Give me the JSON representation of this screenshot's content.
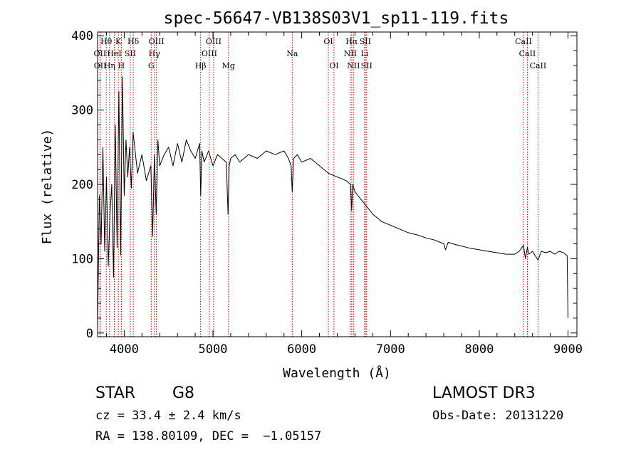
{
  "chart_data": {
    "type": "line",
    "title": "spec-56647-VB138S03V1_sp11-119.fits",
    "xlabel": "Wavelength (Å)",
    "ylabel": "Flux (relative)",
    "xlim": [
      3700,
      9100
    ],
    "ylim": [
      -5,
      405
    ],
    "x_ticks": [
      4000,
      5000,
      6000,
      7000,
      8000,
      9000
    ],
    "y_ticks": [
      0,
      100,
      200,
      300,
      400
    ],
    "series": [
      {
        "name": "spectrum",
        "x": [
          3700,
          3720,
          3740,
          3760,
          3780,
          3800,
          3820,
          3840,
          3860,
          3880,
          3900,
          3920,
          3940,
          3960,
          3980,
          4000,
          4020,
          4040,
          4060,
          4080,
          4100,
          4150,
          4200,
          4250,
          4300,
          4320,
          4340,
          4360,
          4380,
          4400,
          4450,
          4500,
          4550,
          4600,
          4650,
          4700,
          4750,
          4800,
          4850,
          4862,
          4875,
          4900,
          4950,
          5000,
          5050,
          5100,
          5150,
          5170,
          5183,
          5200,
          5250,
          5300,
          5400,
          5500,
          5600,
          5700,
          5800,
          5850,
          5880,
          5893,
          5910,
          5950,
          6000,
          6100,
          6200,
          6300,
          6400,
          6500,
          6550,
          6563,
          6575,
          6600,
          6700,
          6800,
          6900,
          7000,
          7100,
          7200,
          7300,
          7400,
          7500,
          7600,
          7620,
          7650,
          7700,
          7800,
          7900,
          8000,
          8100,
          8200,
          8300,
          8400,
          8450,
          8498,
          8520,
          8542,
          8560,
          8600,
          8662,
          8700,
          8750,
          8800,
          8850,
          8900,
          8950,
          8990,
          9000
        ],
        "values": [
          5,
          185,
          120,
          250,
          110,
          210,
          90,
          160,
          200,
          75,
          280,
          115,
          325,
          105,
          345,
          185,
          260,
          210,
          250,
          195,
          270,
          215,
          240,
          205,
          225,
          130,
          240,
          160,
          260,
          225,
          240,
          250,
          225,
          255,
          230,
          260,
          245,
          235,
          255,
          185,
          245,
          230,
          245,
          225,
          240,
          235,
          230,
          160,
          225,
          235,
          240,
          230,
          240,
          235,
          245,
          240,
          245,
          235,
          225,
          190,
          235,
          240,
          230,
          235,
          225,
          215,
          210,
          205,
          200,
          165,
          200,
          190,
          175,
          160,
          150,
          145,
          140,
          135,
          132,
          128,
          125,
          120,
          112,
          122,
          120,
          117,
          114,
          112,
          110,
          108,
          106,
          106,
          110,
          118,
          100,
          115,
          106,
          110,
          98,
          110,
          108,
          110,
          106,
          110,
          108,
          104,
          20
        ]
      }
    ],
    "line_sets": [
      {
        "row": 1,
        "labels": [
          {
            "text": "Hθ",
            "x": 3798
          },
          {
            "text": "K",
            "x": 3934
          },
          {
            "text": "Hδ",
            "x": 4102
          },
          {
            "text": "OIII",
            "x": 4363
          },
          {
            "text": "OIII",
            "x": 5007
          },
          {
            "text": "OI",
            "x": 6300
          },
          {
            "text": "Hα",
            "x": 6563
          },
          {
            "text": "SII",
            "x": 6716
          },
          {
            "text": "CaII",
            "x": 8498
          }
        ]
      },
      {
        "row": 2,
        "labels": [
          {
            "text": "OII",
            "x": 3727
          },
          {
            "text": "HeI",
            "x": 3889
          },
          {
            "text": "SII",
            "x": 4069
          },
          {
            "text": "Hγ",
            "x": 4340
          },
          {
            "text": "OIII",
            "x": 4959
          },
          {
            "text": "Na",
            "x": 5893
          },
          {
            "text": "NII",
            "x": 6548
          },
          {
            "text": "Li",
            "x": 6708
          },
          {
            "text": "CaII",
            "x": 8542
          }
        ]
      },
      {
        "row": 3,
        "labels": [
          {
            "text": "OII",
            "x": 3729
          },
          {
            "text": "Hη",
            "x": 3835
          },
          {
            "text": "H",
            "x": 3968
          },
          {
            "text": "G",
            "x": 4304
          },
          {
            "text": "Hβ",
            "x": 4861
          },
          {
            "text": "Mg",
            "x": 5175
          },
          {
            "text": "OI",
            "x": 6363
          },
          {
            "text": "NII",
            "x": 6583
          },
          {
            "text": "SII",
            "x": 6731
          },
          {
            "text": "CaII",
            "x": 8662
          }
        ]
      }
    ],
    "line_color": "#cc0000"
  },
  "info": {
    "class": "STAR",
    "subclass": "G8",
    "survey": "LAMOST DR3",
    "cz": "cz = 33.4 ± 2.4 km/s",
    "obs_date": "Obs-Date: 20131220",
    "radec": "RA = 138.80109, DEC =  −1.05157"
  }
}
